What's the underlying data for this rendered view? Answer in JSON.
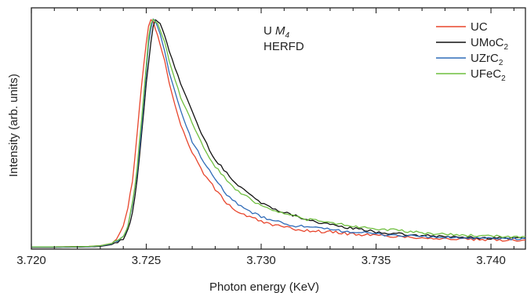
{
  "chart_data": {
    "type": "line",
    "title": "",
    "xlabel": "Photon energy (KeV)",
    "ylabel": "Intensity (arb. units)",
    "xlim": [
      3.72,
      3.7415
    ],
    "ylim": [
      0,
      1.05
    ],
    "xticks": [
      "3.720",
      "3.725",
      "3.730",
      "3.735",
      "3.740"
    ],
    "yticks_visible": false,
    "grid": false,
    "legend_position": "top-right",
    "annotation": {
      "line1": "U",
      "line1_italic": "M",
      "line1_sub": "4",
      "line2": "HERFD"
    },
    "series": [
      {
        "name": "UC",
        "name_base": "UC",
        "name_sub": "",
        "color": "#e8452c",
        "points": [
          [
            3.72,
            0.01
          ],
          [
            3.721,
            0.01
          ],
          [
            3.722,
            0.011
          ],
          [
            3.7225,
            0.012
          ],
          [
            3.723,
            0.015
          ],
          [
            3.7235,
            0.025
          ],
          [
            3.7238,
            0.055
          ],
          [
            3.724,
            0.1
          ],
          [
            3.7242,
            0.18
          ],
          [
            3.7244,
            0.3
          ],
          [
            3.7246,
            0.5
          ],
          [
            3.7248,
            0.72
          ],
          [
            3.725,
            0.9
          ],
          [
            3.7251,
            0.97
          ],
          [
            3.7252,
            1.0
          ],
          [
            3.7253,
            0.99
          ],
          [
            3.7255,
            0.93
          ],
          [
            3.7258,
            0.82
          ],
          [
            3.726,
            0.72
          ],
          [
            3.7265,
            0.54
          ],
          [
            3.727,
            0.42
          ],
          [
            3.7275,
            0.33
          ],
          [
            3.728,
            0.26
          ],
          [
            3.7285,
            0.2
          ],
          [
            3.729,
            0.16
          ],
          [
            3.73,
            0.12
          ],
          [
            3.731,
            0.095
          ],
          [
            3.732,
            0.08
          ],
          [
            3.733,
            0.075
          ],
          [
            3.734,
            0.065
          ],
          [
            3.735,
            0.06
          ],
          [
            3.736,
            0.055
          ],
          [
            3.737,
            0.05
          ],
          [
            3.738,
            0.045
          ],
          [
            3.739,
            0.042
          ],
          [
            3.74,
            0.04
          ],
          [
            3.7415,
            0.04
          ]
        ]
      },
      {
        "name": "UMoC2",
        "name_base": "UMoC",
        "name_sub": "2",
        "color": "#111111",
        "points": [
          [
            3.72,
            0.008
          ],
          [
            3.721,
            0.008
          ],
          [
            3.722,
            0.009
          ],
          [
            3.7225,
            0.01
          ],
          [
            3.723,
            0.012
          ],
          [
            3.7235,
            0.02
          ],
          [
            3.724,
            0.045
          ],
          [
            3.7242,
            0.085
          ],
          [
            3.7244,
            0.16
          ],
          [
            3.7246,
            0.3
          ],
          [
            3.7248,
            0.5
          ],
          [
            3.725,
            0.72
          ],
          [
            3.7252,
            0.9
          ],
          [
            3.7253,
            0.97
          ],
          [
            3.7254,
            1.0
          ],
          [
            3.7256,
            0.98
          ],
          [
            3.7258,
            0.93
          ],
          [
            3.726,
            0.86
          ],
          [
            3.7265,
            0.72
          ],
          [
            3.727,
            0.6
          ],
          [
            3.7272,
            0.55
          ],
          [
            3.7275,
            0.48
          ],
          [
            3.728,
            0.39
          ],
          [
            3.7285,
            0.33
          ],
          [
            3.729,
            0.28
          ],
          [
            3.73,
            0.2
          ],
          [
            3.731,
            0.16
          ],
          [
            3.732,
            0.13
          ],
          [
            3.733,
            0.105
          ],
          [
            3.734,
            0.09
          ],
          [
            3.735,
            0.075
          ],
          [
            3.736,
            0.065
          ],
          [
            3.737,
            0.058
          ],
          [
            3.738,
            0.055
          ],
          [
            3.739,
            0.05
          ],
          [
            3.74,
            0.048
          ],
          [
            3.7415,
            0.048
          ]
        ]
      },
      {
        "name": "UZrC2",
        "name_base": "UZrC",
        "name_sub": "2",
        "color": "#2f6bb8",
        "points": [
          [
            3.72,
            0.009
          ],
          [
            3.721,
            0.009
          ],
          [
            3.722,
            0.01
          ],
          [
            3.7225,
            0.011
          ],
          [
            3.723,
            0.014
          ],
          [
            3.7235,
            0.023
          ],
          [
            3.724,
            0.05
          ],
          [
            3.7242,
            0.1
          ],
          [
            3.7244,
            0.19
          ],
          [
            3.7246,
            0.33
          ],
          [
            3.7248,
            0.54
          ],
          [
            3.725,
            0.77
          ],
          [
            3.7251,
            0.89
          ],
          [
            3.7252,
            0.96
          ],
          [
            3.7253,
            1.0
          ],
          [
            3.7254,
            0.99
          ],
          [
            3.7256,
            0.94
          ],
          [
            3.7258,
            0.86
          ],
          [
            3.726,
            0.77
          ],
          [
            3.7265,
            0.6
          ],
          [
            3.727,
            0.47
          ],
          [
            3.7275,
            0.38
          ],
          [
            3.728,
            0.3
          ],
          [
            3.7285,
            0.24
          ],
          [
            3.729,
            0.19
          ],
          [
            3.73,
            0.14
          ],
          [
            3.731,
            0.11
          ],
          [
            3.732,
            0.095
          ],
          [
            3.733,
            0.085
          ],
          [
            3.734,
            0.075
          ],
          [
            3.735,
            0.065
          ],
          [
            3.736,
            0.06
          ],
          [
            3.737,
            0.055
          ],
          [
            3.738,
            0.05
          ],
          [
            3.739,
            0.048
          ],
          [
            3.74,
            0.045
          ],
          [
            3.7415,
            0.045
          ]
        ]
      },
      {
        "name": "UFeC2",
        "name_base": "UFeC",
        "name_sub": "2",
        "color": "#6fbf3f",
        "points": [
          [
            3.72,
            0.01
          ],
          [
            3.721,
            0.01
          ],
          [
            3.722,
            0.011
          ],
          [
            3.7225,
            0.012
          ],
          [
            3.723,
            0.015
          ],
          [
            3.7235,
            0.025
          ],
          [
            3.724,
            0.052
          ],
          [
            3.7242,
            0.1
          ],
          [
            3.7244,
            0.2
          ],
          [
            3.7246,
            0.35
          ],
          [
            3.7248,
            0.57
          ],
          [
            3.725,
            0.8
          ],
          [
            3.7251,
            0.92
          ],
          [
            3.7252,
            0.98
          ],
          [
            3.7253,
            1.0
          ],
          [
            3.7255,
            0.98
          ],
          [
            3.7258,
            0.9
          ],
          [
            3.726,
            0.82
          ],
          [
            3.7265,
            0.66
          ],
          [
            3.727,
            0.55
          ],
          [
            3.7275,
            0.44
          ],
          [
            3.728,
            0.36
          ],
          [
            3.7285,
            0.3
          ],
          [
            3.729,
            0.25
          ],
          [
            3.73,
            0.19
          ],
          [
            3.731,
            0.155
          ],
          [
            3.732,
            0.13
          ],
          [
            3.733,
            0.115
          ],
          [
            3.734,
            0.1
          ],
          [
            3.735,
            0.09
          ],
          [
            3.736,
            0.08
          ],
          [
            3.737,
            0.07
          ],
          [
            3.738,
            0.065
          ],
          [
            3.739,
            0.06
          ],
          [
            3.74,
            0.055
          ],
          [
            3.7415,
            0.055
          ]
        ]
      }
    ]
  }
}
